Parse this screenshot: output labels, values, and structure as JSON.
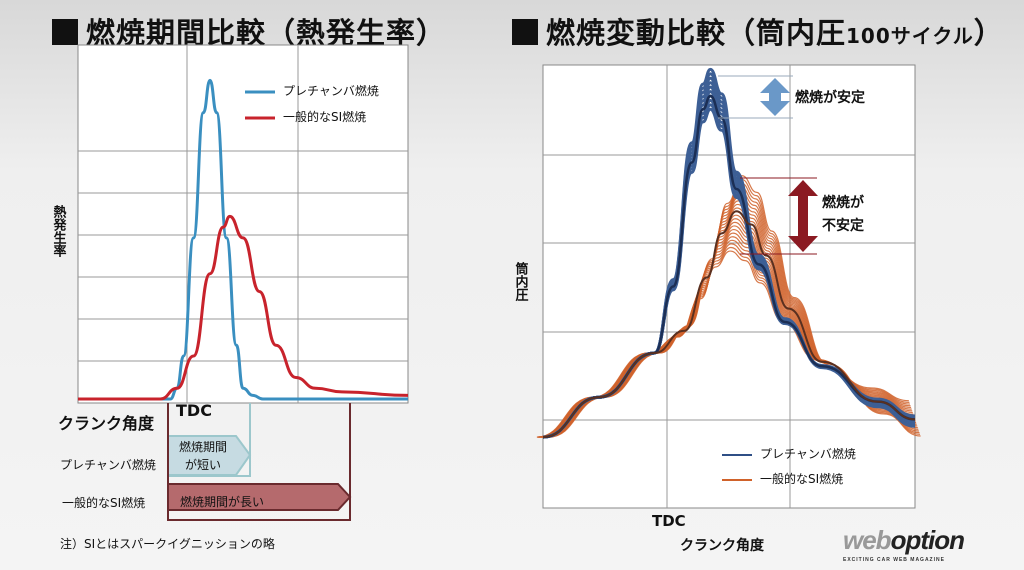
{
  "left": {
    "title": "燃焼期間比較（熱発生率）",
    "ylabel": "熱発生率",
    "tdc": "TDC",
    "crank_label": "クランク角度",
    "row1_label": "プレチャンバ燃焼",
    "row1_box": [
      "燃焼期間",
      "が短い"
    ],
    "row2_label": "一般的なSI燃焼",
    "row2_box": "燃焼期間が長い",
    "note": "注）SIとはスパークイグニッションの略"
  },
  "right": {
    "title_main": "燃焼変動比較（筒内圧",
    "title_small": "100サイクル",
    "title_end": "）",
    "ylabel": "筒内圧",
    "xlabel": "クランク角度",
    "tdc": "TDC",
    "stable": "燃焼が安定",
    "unstable": [
      "燃焼が",
      "不安定"
    ]
  },
  "logo": {
    "main": "weboption",
    "sub": "EXCITING CAR WEB MAGAZINE"
  },
  "colors": {
    "blue": "#3a8fc0",
    "red": "#c8232c",
    "navy": "#2f4f86",
    "orange": "#d0622a",
    "darkred": "#8b1a22"
  },
  "chart_data": [
    {
      "type": "line",
      "title": "燃焼期間比較（熱発生率）",
      "xlabel": "クランク角度",
      "ylabel": "熱発生率",
      "xlim": [
        0,
        100
      ],
      "ylim": [
        0,
        100
      ],
      "grid": true,
      "legend": "top-right",
      "series": [
        {
          "name": "プレチャンバ燃焼",
          "color": "#3a8fc0",
          "x": [
            0,
            28,
            30,
            32,
            35,
            38,
            40,
            42,
            45,
            48,
            50,
            53,
            56,
            100
          ],
          "y": [
            0,
            0,
            3,
            12,
            45,
            80,
            89,
            80,
            45,
            15,
            3,
            1,
            0,
            0
          ]
        },
        {
          "name": "一般的なSI燃焼",
          "color": "#c8232c",
          "x": [
            0,
            25,
            30,
            35,
            40,
            44,
            46,
            50,
            55,
            60,
            66,
            72,
            80,
            100
          ],
          "y": [
            0,
            0,
            3,
            12,
            35,
            48,
            51,
            45,
            30,
            15,
            6,
            3,
            2,
            1
          ]
        }
      ]
    },
    {
      "type": "line",
      "title": "燃焼変動比較（筒内圧100サイクル）",
      "xlabel": "クランク角度",
      "ylabel": "筒内圧",
      "xlim": [
        0,
        100
      ],
      "ylim": [
        0,
        100
      ],
      "grid": true,
      "legend": "bottom-right",
      "series": [
        {
          "name": "プレチャンバ燃焼",
          "color": "#2f4f86",
          "x": [
            0,
            15,
            30,
            35,
            40,
            43,
            45,
            48,
            52,
            58,
            65,
            75,
            90,
            100
          ],
          "y": [
            16,
            25,
            35,
            50,
            78,
            90,
            93,
            88,
            72,
            55,
            42,
            32,
            24,
            20
          ],
          "peak_spread": [
            90,
            99
          ]
        },
        {
          "name": "一般的なSI燃焼",
          "color": "#d0622a",
          "x": [
            0,
            15,
            30,
            38,
            44,
            48,
            52,
            56,
            60,
            66,
            75,
            90,
            100
          ],
          "y": [
            16,
            25,
            35,
            40,
            52,
            62,
            67,
            64,
            57,
            45,
            33,
            24,
            20
          ],
          "peak_spread": [
            58,
            75
          ]
        }
      ]
    }
  ]
}
